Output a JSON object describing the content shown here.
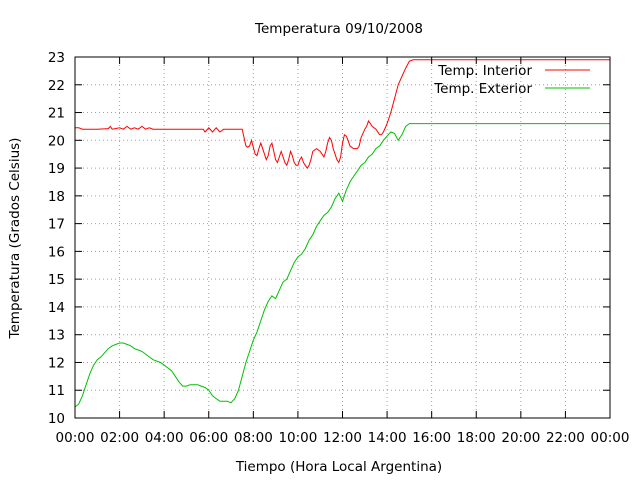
{
  "chart_data": {
    "type": "line",
    "title": "Temperatura 09/10/2008",
    "xlabel": "Tiempo (Hora Local Argentina)",
    "ylabel": "Temperatura (Grados Celsius)",
    "xlim": [
      "00:00",
      "24:00"
    ],
    "ylim": [
      10,
      23
    ],
    "x_ticks": [
      "00:00",
      "02:00",
      "04:00",
      "06:00",
      "08:00",
      "10:00",
      "12:00",
      "14:00",
      "16:00",
      "18:00",
      "20:00",
      "22:00",
      "00:00"
    ],
    "y_ticks": [
      10,
      11,
      12,
      13,
      14,
      15,
      16,
      17,
      18,
      19,
      20,
      21,
      22,
      23
    ],
    "grid": true,
    "legend_position": "top-right",
    "series": [
      {
        "name": "Temp. Interior",
        "color": "#ff0000",
        "points": [
          [
            "00:00",
            20.45
          ],
          [
            "00:10",
            20.45
          ],
          [
            "00:20",
            20.4
          ],
          [
            "01:00",
            20.4
          ],
          [
            "01:30",
            20.42
          ],
          [
            "01:35",
            20.5
          ],
          [
            "01:40",
            20.4
          ],
          [
            "02:00",
            20.45
          ],
          [
            "02:10",
            20.4
          ],
          [
            "02:20",
            20.5
          ],
          [
            "02:30",
            20.4
          ],
          [
            "02:40",
            20.45
          ],
          [
            "02:50",
            20.4
          ],
          [
            "03:00",
            20.5
          ],
          [
            "03:10",
            20.4
          ],
          [
            "03:20",
            20.45
          ],
          [
            "03:30",
            20.4
          ],
          [
            "05:00",
            20.4
          ],
          [
            "05:45",
            20.4
          ],
          [
            "05:50",
            20.3
          ],
          [
            "06:00",
            20.45
          ],
          [
            "06:10",
            20.3
          ],
          [
            "06:20",
            20.45
          ],
          [
            "06:30",
            20.3
          ],
          [
            "06:40",
            20.4
          ],
          [
            "07:30",
            20.4
          ],
          [
            "07:35",
            20.1
          ],
          [
            "07:40",
            19.8
          ],
          [
            "07:45",
            19.75
          ],
          [
            "07:50",
            19.8
          ],
          [
            "07:55",
            20.0
          ],
          [
            "08:00",
            19.75
          ],
          [
            "08:05",
            19.5
          ],
          [
            "08:10",
            19.45
          ],
          [
            "08:15",
            19.7
          ],
          [
            "08:20",
            19.9
          ],
          [
            "08:30",
            19.5
          ],
          [
            "08:35",
            19.3
          ],
          [
            "08:40",
            19.45
          ],
          [
            "08:45",
            19.8
          ],
          [
            "08:50",
            19.9
          ],
          [
            "08:55",
            19.6
          ],
          [
            "09:00",
            19.3
          ],
          [
            "09:05",
            19.2
          ],
          [
            "09:10",
            19.4
          ],
          [
            "09:15",
            19.6
          ],
          [
            "09:20",
            19.4
          ],
          [
            "09:25",
            19.2
          ],
          [
            "09:30",
            19.1
          ],
          [
            "09:35",
            19.3
          ],
          [
            "09:40",
            19.6
          ],
          [
            "09:45",
            19.45
          ],
          [
            "09:50",
            19.2
          ],
          [
            "09:55",
            19.1
          ],
          [
            "10:00",
            19.1
          ],
          [
            "10:05",
            19.3
          ],
          [
            "10:10",
            19.4
          ],
          [
            "10:15",
            19.2
          ],
          [
            "10:20",
            19.1
          ],
          [
            "10:25",
            19.0
          ],
          [
            "10:30",
            19.1
          ],
          [
            "10:35",
            19.3
          ],
          [
            "10:40",
            19.6
          ],
          [
            "10:50",
            19.7
          ],
          [
            "11:00",
            19.6
          ],
          [
            "11:10",
            19.4
          ],
          [
            "11:15",
            19.6
          ],
          [
            "11:20",
            19.9
          ],
          [
            "11:25",
            20.1
          ],
          [
            "11:30",
            20.0
          ],
          [
            "11:35",
            19.7
          ],
          [
            "11:40",
            19.5
          ],
          [
            "11:45",
            19.3
          ],
          [
            "11:50",
            19.2
          ],
          [
            "11:55",
            19.4
          ],
          [
            "12:00",
            19.9
          ],
          [
            "12:05",
            20.2
          ],
          [
            "12:10",
            20.15
          ],
          [
            "12:15",
            20.0
          ],
          [
            "12:20",
            19.8
          ],
          [
            "12:30",
            19.7
          ],
          [
            "12:40",
            19.7
          ],
          [
            "12:45",
            19.8
          ],
          [
            "12:50",
            20.1
          ],
          [
            "13:00",
            20.4
          ],
          [
            "13:05",
            20.5
          ],
          [
            "13:10",
            20.7
          ],
          [
            "13:15",
            20.6
          ],
          [
            "13:20",
            20.5
          ],
          [
            "13:30",
            20.4
          ],
          [
            "13:40",
            20.2
          ],
          [
            "13:45",
            20.2
          ],
          [
            "13:50",
            20.3
          ],
          [
            "14:00",
            20.6
          ],
          [
            "14:10",
            21.0
          ],
          [
            "14:20",
            21.5
          ],
          [
            "14:30",
            22.0
          ],
          [
            "14:40",
            22.3
          ],
          [
            "14:50",
            22.6
          ],
          [
            "15:00",
            22.85
          ],
          [
            "15:10",
            22.9
          ],
          [
            "24:00",
            22.9
          ]
        ]
      },
      {
        "name": "Temp. Exterior",
        "color": "#00c000",
        "points": [
          [
            "00:00",
            10.4
          ],
          [
            "00:10",
            10.5
          ],
          [
            "00:20",
            10.8
          ],
          [
            "00:30",
            11.2
          ],
          [
            "00:40",
            11.6
          ],
          [
            "00:50",
            11.9
          ],
          [
            "01:00",
            12.1
          ],
          [
            "01:10",
            12.2
          ],
          [
            "01:20",
            12.35
          ],
          [
            "01:30",
            12.5
          ],
          [
            "01:40",
            12.6
          ],
          [
            "01:50",
            12.65
          ],
          [
            "02:00",
            12.7
          ],
          [
            "02:10",
            12.7
          ],
          [
            "02:20",
            12.65
          ],
          [
            "02:30",
            12.6
          ],
          [
            "02:40",
            12.5
          ],
          [
            "02:50",
            12.45
          ],
          [
            "03:00",
            12.4
          ],
          [
            "03:10",
            12.3
          ],
          [
            "03:20",
            12.2
          ],
          [
            "03:30",
            12.1
          ],
          [
            "03:40",
            12.05
          ],
          [
            "03:50",
            12.0
          ],
          [
            "04:00",
            11.9
          ],
          [
            "04:10",
            11.8
          ],
          [
            "04:20",
            11.7
          ],
          [
            "04:30",
            11.5
          ],
          [
            "04:40",
            11.3
          ],
          [
            "04:50",
            11.15
          ],
          [
            "05:00",
            11.15
          ],
          [
            "05:10",
            11.2
          ],
          [
            "05:20",
            11.2
          ],
          [
            "05:30",
            11.2
          ],
          [
            "05:40",
            11.15
          ],
          [
            "05:50",
            11.1
          ],
          [
            "06:00",
            11.0
          ],
          [
            "06:10",
            10.8
          ],
          [
            "06:20",
            10.7
          ],
          [
            "06:30",
            10.6
          ],
          [
            "06:40",
            10.6
          ],
          [
            "06:50",
            10.6
          ],
          [
            "07:00",
            10.55
          ],
          [
            "07:10",
            10.7
          ],
          [
            "07:20",
            11.0
          ],
          [
            "07:30",
            11.5
          ],
          [
            "07:40",
            12.0
          ],
          [
            "07:50",
            12.4
          ],
          [
            "08:00",
            12.8
          ],
          [
            "08:10",
            13.1
          ],
          [
            "08:20",
            13.5
          ],
          [
            "08:30",
            13.9
          ],
          [
            "08:40",
            14.2
          ],
          [
            "08:50",
            14.4
          ],
          [
            "09:00",
            14.3
          ],
          [
            "09:10",
            14.6
          ],
          [
            "09:20",
            14.9
          ],
          [
            "09:30",
            15.0
          ],
          [
            "09:40",
            15.3
          ],
          [
            "09:50",
            15.6
          ],
          [
            "10:00",
            15.8
          ],
          [
            "10:10",
            15.9
          ],
          [
            "10:20",
            16.1
          ],
          [
            "10:30",
            16.4
          ],
          [
            "10:40",
            16.6
          ],
          [
            "10:50",
            16.9
          ],
          [
            "11:00",
            17.1
          ],
          [
            "11:10",
            17.3
          ],
          [
            "11:20",
            17.4
          ],
          [
            "11:30",
            17.6
          ],
          [
            "11:40",
            17.9
          ],
          [
            "11:50",
            18.1
          ],
          [
            "12:00",
            17.8
          ],
          [
            "12:10",
            18.2
          ],
          [
            "12:20",
            18.5
          ],
          [
            "12:30",
            18.7
          ],
          [
            "12:40",
            18.9
          ],
          [
            "12:50",
            19.1
          ],
          [
            "13:00",
            19.2
          ],
          [
            "13:10",
            19.4
          ],
          [
            "13:20",
            19.5
          ],
          [
            "13:30",
            19.7
          ],
          [
            "13:40",
            19.8
          ],
          [
            "13:50",
            20.0
          ],
          [
            "14:00",
            20.15
          ],
          [
            "14:10",
            20.3
          ],
          [
            "14:20",
            20.25
          ],
          [
            "14:30",
            20.0
          ],
          [
            "14:40",
            20.2
          ],
          [
            "14:50",
            20.5
          ],
          [
            "15:00",
            20.6
          ],
          [
            "24:00",
            20.6
          ]
        ]
      }
    ]
  }
}
